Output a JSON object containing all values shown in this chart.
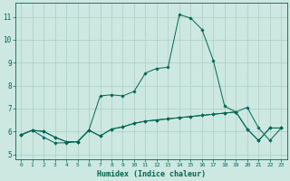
{
  "xlabel": "Humidex (Indice chaleur)",
  "background_color": "#cce8e0",
  "grid_color": "#aaccc4",
  "line_color": "#006655",
  "xlim": [
    -0.5,
    23.5
  ],
  "ylim": [
    4.8,
    11.6
  ],
  "yticks": [
    5,
    6,
    7,
    8,
    9,
    10,
    11
  ],
  "xticks": [
    0,
    1,
    2,
    3,
    4,
    5,
    6,
    7,
    8,
    9,
    10,
    11,
    12,
    13,
    14,
    15,
    16,
    17,
    18,
    19,
    20,
    21,
    22,
    23
  ],
  "line1_x": [
    0,
    1,
    2,
    3,
    4,
    5,
    6,
    7,
    8,
    9,
    10,
    11,
    12,
    13,
    14,
    15,
    16,
    17,
    18,
    19,
    20,
    21,
    22,
    23
  ],
  "line1_y": [
    5.85,
    6.05,
    6.0,
    5.75,
    5.55,
    5.55,
    6.05,
    5.8,
    6.1,
    6.2,
    6.35,
    6.45,
    6.5,
    6.55,
    6.6,
    6.65,
    6.7,
    6.75,
    6.8,
    6.85,
    6.1,
    5.6,
    6.15,
    6.15
  ],
  "line2_x": [
    0,
    1,
    2,
    3,
    4,
    5,
    6,
    7,
    8,
    9,
    10,
    11,
    12,
    13,
    14,
    15,
    16,
    17,
    18,
    19,
    20,
    21,
    22,
    23
  ],
  "line2_y": [
    5.85,
    6.05,
    6.0,
    5.75,
    5.55,
    5.55,
    6.05,
    7.55,
    7.6,
    7.55,
    7.75,
    8.55,
    8.75,
    8.8,
    11.1,
    10.95,
    10.45,
    9.1,
    7.1,
    6.85,
    7.05,
    6.15,
    5.6,
    6.15
  ],
  "line3_x": [
    0,
    1,
    2,
    3,
    4,
    5,
    6,
    7,
    8,
    9,
    10,
    11,
    12,
    13,
    14,
    15,
    16,
    17,
    18,
    19,
    20,
    21,
    22,
    23
  ],
  "line3_y": [
    5.85,
    6.05,
    5.75,
    5.5,
    5.5,
    5.55,
    6.05,
    5.8,
    6.1,
    6.2,
    6.35,
    6.45,
    6.5,
    6.55,
    6.6,
    6.65,
    6.7,
    6.75,
    6.8,
    6.85,
    6.1,
    5.6,
    6.15,
    6.15
  ]
}
